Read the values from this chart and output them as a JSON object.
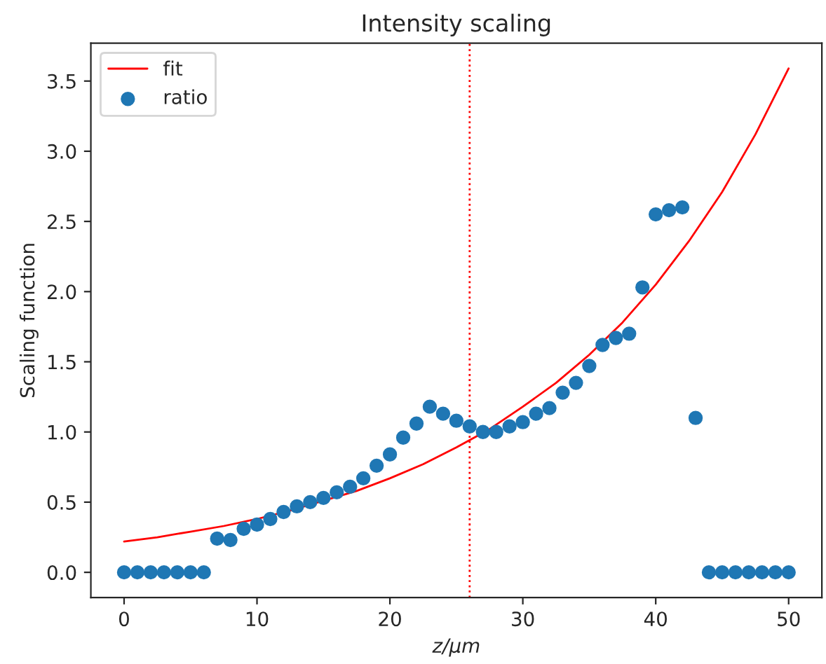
{
  "chart_data": {
    "type": "scatter",
    "title": "Intensity scaling",
    "xlabel": "z/μm",
    "ylabel": "Scaling function",
    "series": [
      {
        "name": "fit",
        "type": "line",
        "color": "#ff0000",
        "marker": "none",
        "line_style": "solid",
        "x": [
          0,
          2.5,
          5,
          7.5,
          10,
          12.5,
          15,
          17.5,
          20,
          22.5,
          25,
          27.5,
          30,
          32.5,
          35,
          37.5,
          40,
          42.5,
          45,
          47.5,
          50
        ],
        "values": [
          0.22,
          0.25,
          0.29,
          0.33,
          0.38,
          0.44,
          0.51,
          0.58,
          0.67,
          0.77,
          0.89,
          1.02,
          1.18,
          1.35,
          1.55,
          1.78,
          2.05,
          2.36,
          2.71,
          3.12,
          3.59
        ]
      },
      {
        "name": "ratio",
        "color": "#1f77b4",
        "marker": "circle",
        "x": [
          0,
          1,
          2,
          3,
          4,
          5,
          6,
          7,
          8,
          9,
          10,
          11,
          12,
          13,
          14,
          15,
          16,
          17,
          18,
          19,
          20,
          21,
          22,
          23,
          24,
          25,
          26,
          27,
          28,
          29,
          30,
          31,
          32,
          33,
          34,
          35,
          36,
          37,
          38,
          39,
          40,
          41,
          42,
          43,
          44,
          45,
          46,
          47,
          48,
          49,
          50
        ],
        "values": [
          0,
          0,
          0,
          0,
          0,
          0,
          0,
          0.24,
          0.23,
          0.31,
          0.34,
          0.38,
          0.43,
          0.47,
          0.5,
          0.53,
          0.57,
          0.61,
          0.67,
          0.76,
          0.84,
          0.96,
          1.06,
          1.18,
          1.13,
          1.08,
          1.04,
          1.0,
          1.0,
          1.04,
          1.07,
          1.13,
          1.17,
          1.28,
          1.35,
          1.47,
          1.62,
          1.67,
          1.7,
          2.03,
          2.55,
          2.58,
          2.6,
          1.1,
          0,
          0,
          0,
          0,
          0,
          0,
          0
        ]
      }
    ],
    "ref_lines": [
      {
        "axis": "x",
        "value": 26,
        "color": "#ff0000",
        "line_style": "dotted"
      }
    ],
    "xlim": [
      -2.5,
      52.5
    ],
    "xticks": [
      0,
      10,
      20,
      30,
      40,
      50
    ],
    "ylim": [
      -0.18,
      3.77
    ],
    "yticks": [
      {
        "value": 0,
        "label": "0.0"
      },
      {
        "value": 0.5,
        "label": "0.5"
      },
      {
        "value": 1,
        "label": "1.0"
      },
      {
        "value": 1.5,
        "label": "1.5"
      },
      {
        "value": 2,
        "label": "2.0"
      },
      {
        "value": 2.5,
        "label": "2.5"
      },
      {
        "value": 3,
        "label": "3.0"
      },
      {
        "value": 3.5,
        "label": "3.5"
      }
    ],
    "grid": false,
    "legend": "top left"
  }
}
